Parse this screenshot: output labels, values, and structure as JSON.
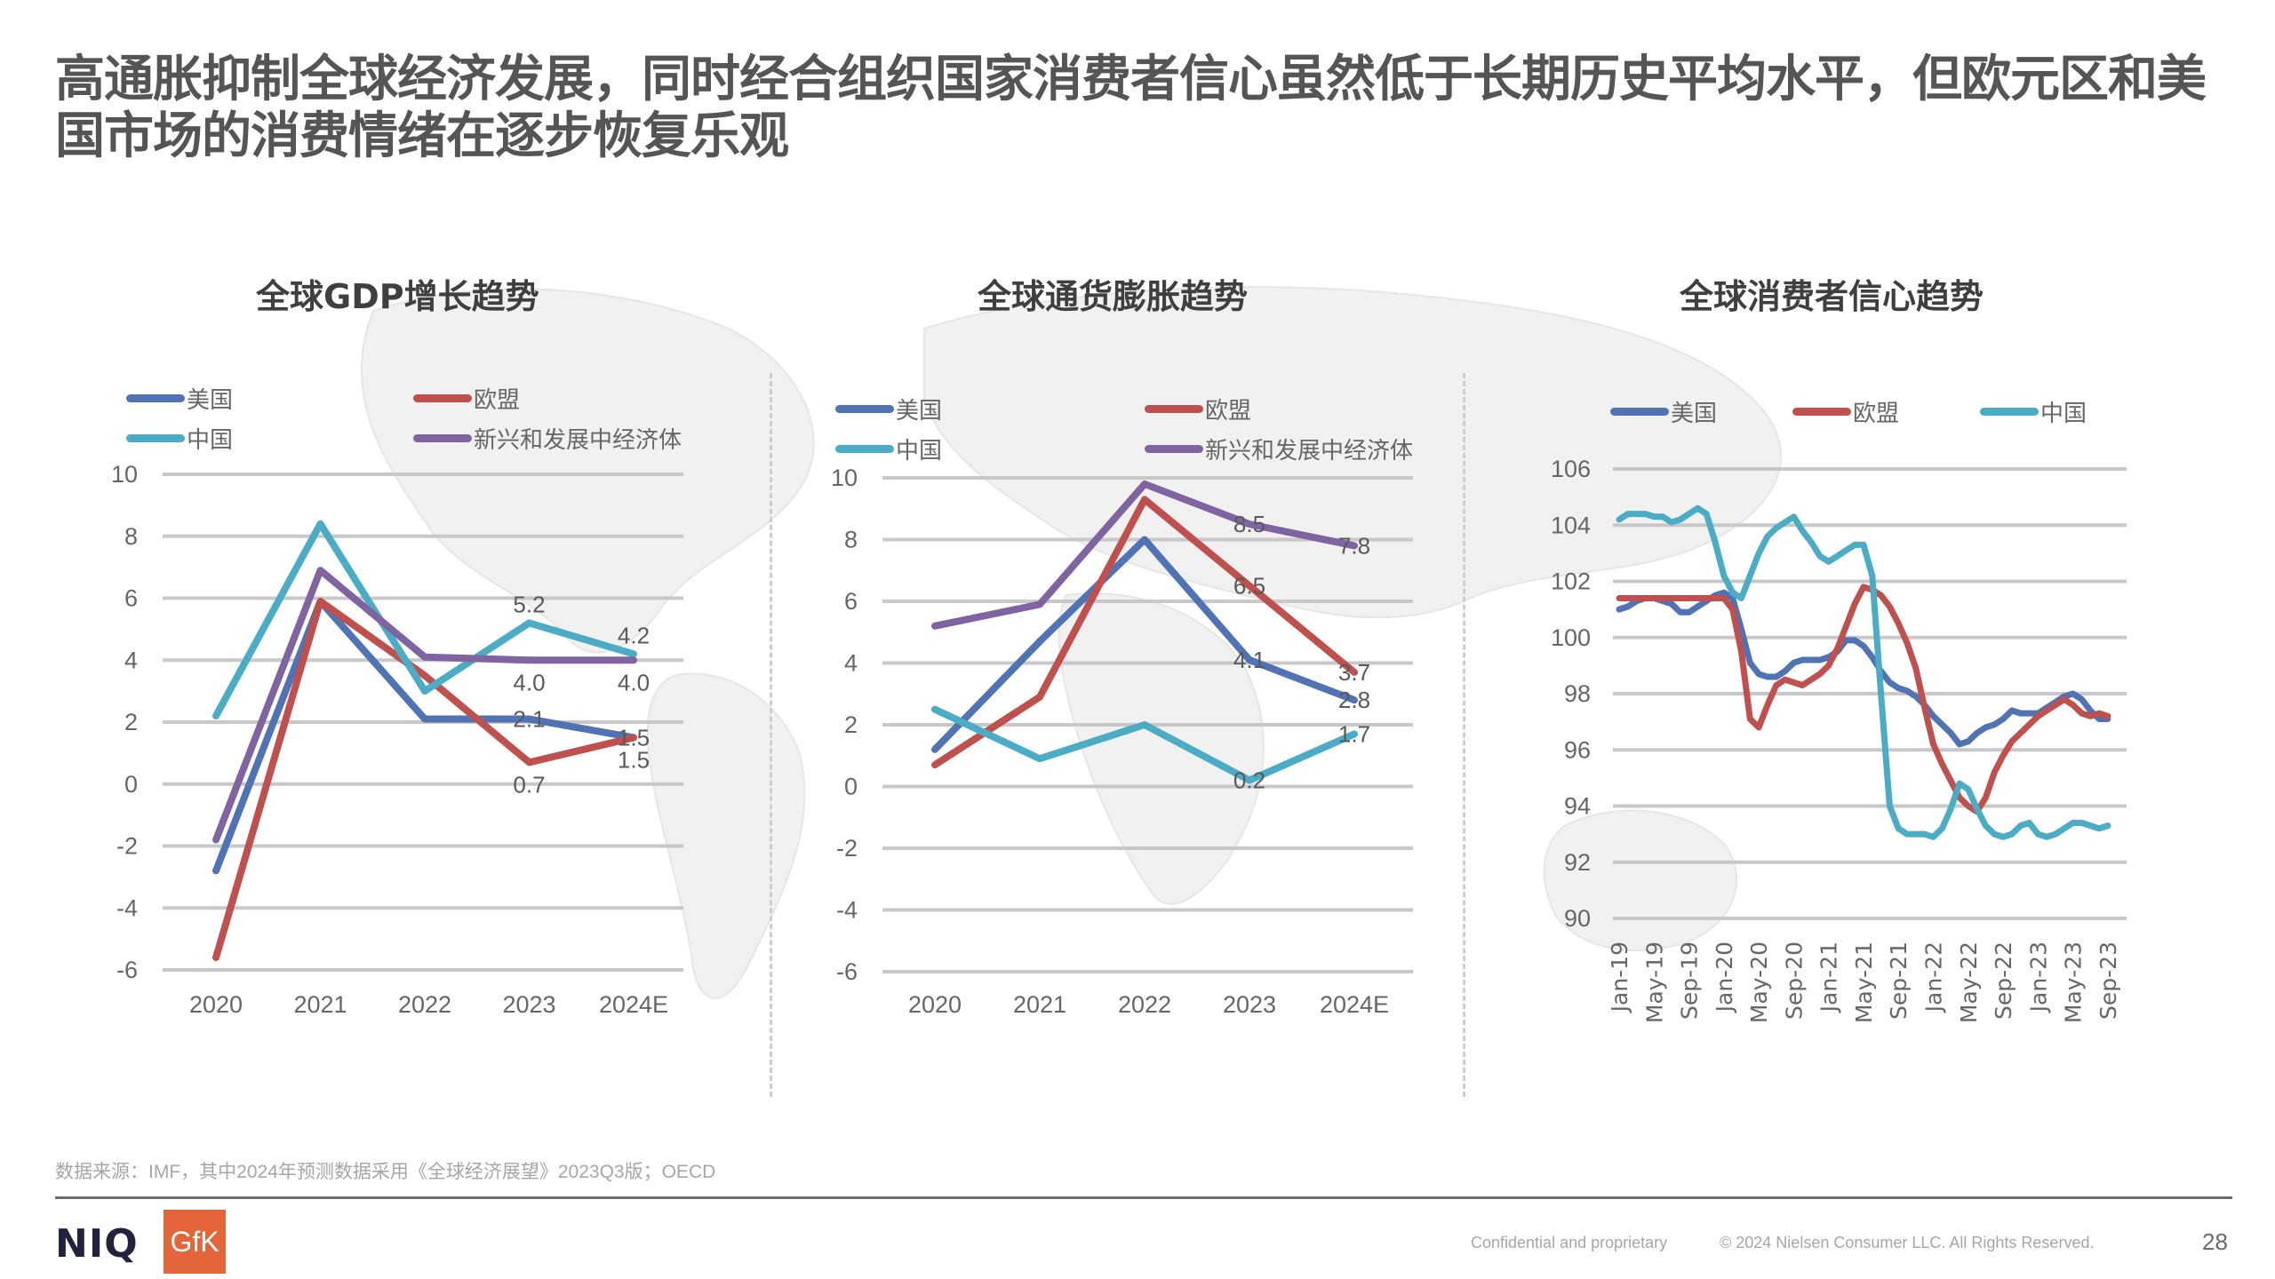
{
  "header": {
    "title": "高通胀抑制全球经济发展，同时经合组织国家消费者信心虽然低于长期历史平均水平，但欧元区和美国市场的消费情绪在逐步恢复乐观"
  },
  "colors": {
    "us": "#4F73B5",
    "eu": "#C0504D",
    "china": "#4BACC6",
    "emde": "#8064A2",
    "grid": "#c8c8c8"
  },
  "chart_data": [
    {
      "type": "line",
      "title": "全球GDP增长趋势",
      "xlabel": "",
      "ylabel": "",
      "categories": [
        "2020",
        "2021",
        "2022",
        "2023",
        "2024E"
      ],
      "yticks": [
        "10",
        "8",
        "6",
        "4",
        "2",
        "0",
        "-2",
        "-4",
        "-6"
      ],
      "ylim": [
        -6,
        10
      ],
      "grid": true,
      "legend_position": "top",
      "series": [
        {
          "name": "美国",
          "key": "us",
          "values": [
            -2.8,
            5.9,
            2.1,
            2.1,
            1.5
          ]
        },
        {
          "name": "欧盟",
          "key": "eu",
          "values": [
            -5.6,
            5.9,
            3.5,
            0.7,
            1.5
          ]
        },
        {
          "name": "中国",
          "key": "china",
          "values": [
            2.2,
            8.4,
            3.0,
            5.2,
            4.2
          ]
        },
        {
          "name": "新兴和发展中经济体",
          "key": "emde",
          "values": [
            -1.8,
            6.9,
            4.1,
            4.0,
            4.0
          ]
        }
      ],
      "data_labels": [
        {
          "series": "china",
          "index": 3,
          "text": "5.2",
          "pos": "above"
        },
        {
          "series": "china",
          "index": 4,
          "text": "4.2",
          "pos": "above"
        },
        {
          "series": "emde",
          "index": 3,
          "text": "4.0",
          "pos": "below"
        },
        {
          "series": "emde",
          "index": 4,
          "text": "4.0",
          "pos": "below"
        },
        {
          "series": "us",
          "index": 3,
          "text": "2.1",
          "pos": "on"
        },
        {
          "series": "us",
          "index": 4,
          "text": "1.5",
          "pos": "on"
        },
        {
          "series": "eu",
          "index": 3,
          "text": "0.7",
          "pos": "below"
        },
        {
          "series": "eu",
          "index": 4,
          "text": "1.5",
          "pos": "below"
        }
      ]
    },
    {
      "type": "line",
      "title": "全球通货膨胀趋势",
      "xlabel": "",
      "ylabel": "",
      "categories": [
        "2020",
        "2021",
        "2022",
        "2023",
        "2024E"
      ],
      "yticks": [
        "10",
        "8",
        "6",
        "4",
        "2",
        "0",
        "-2",
        "-4",
        "-6"
      ],
      "ylim": [
        -6,
        10
      ],
      "grid": true,
      "legend_position": "top",
      "series": [
        {
          "name": "美国",
          "key": "us",
          "values": [
            1.2,
            4.7,
            8.0,
            4.1,
            2.8
          ]
        },
        {
          "name": "欧盟",
          "key": "eu",
          "values": [
            0.7,
            2.9,
            9.3,
            6.5,
            3.7
          ]
        },
        {
          "name": "中国",
          "key": "china",
          "values": [
            2.5,
            0.9,
            2.0,
            0.2,
            1.7
          ]
        },
        {
          "name": "新兴和发展中经济体",
          "key": "emde",
          "values": [
            5.2,
            5.9,
            9.8,
            8.5,
            7.8
          ]
        }
      ],
      "data_labels": [
        {
          "series": "emde",
          "index": 3,
          "text": "8.5",
          "pos": "on"
        },
        {
          "series": "emde",
          "index": 4,
          "text": "7.8",
          "pos": "on"
        },
        {
          "series": "eu",
          "index": 3,
          "text": "6.5",
          "pos": "on"
        },
        {
          "series": "eu",
          "index": 4,
          "text": "3.7",
          "pos": "on"
        },
        {
          "series": "us",
          "index": 3,
          "text": "4.1",
          "pos": "on"
        },
        {
          "series": "us",
          "index": 4,
          "text": "2.8",
          "pos": "on"
        },
        {
          "series": "china",
          "index": 3,
          "text": "0.2",
          "pos": "on"
        },
        {
          "series": "china",
          "index": 4,
          "text": "1.7",
          "pos": "on"
        }
      ]
    },
    {
      "type": "line",
      "title": "全球消费者信心趋势",
      "xlabel": "",
      "ylabel": "",
      "x_start": "Jan-19",
      "x_step": "1 month",
      "xtick_labels": [
        "Jan-19",
        "May-19",
        "Sep-19",
        "Jan-20",
        "May-20",
        "Sep-20",
        "Jan-21",
        "May-21",
        "Sep-21",
        "Jan-22",
        "May-22",
        "Sep-22",
        "Jan-23",
        "May-23",
        "Sep-23"
      ],
      "xtick_every": 4,
      "yticks": [
        "106",
        "104",
        "102",
        "100",
        "98",
        "96",
        "94",
        "92",
        "90"
      ],
      "ylim": [
        90,
        106
      ],
      "grid": true,
      "legend_position": "top",
      "series": [
        {
          "name": "美国",
          "key": "us",
          "values": [
            101.0,
            101.1,
            101.3,
            101.4,
            101.4,
            101.3,
            101.2,
            100.9,
            100.9,
            101.1,
            101.3,
            101.5,
            101.6,
            101.4,
            100.3,
            99.1,
            98.7,
            98.6,
            98.6,
            98.8,
            99.1,
            99.2,
            99.2,
            99.2,
            99.3,
            99.5,
            99.9,
            99.9,
            99.7,
            99.3,
            98.8,
            98.4,
            98.2,
            98.1,
            97.9,
            97.6,
            97.2,
            96.9,
            96.6,
            96.2,
            96.3,
            96.6,
            96.8,
            96.9,
            97.1,
            97.4,
            97.3,
            97.3,
            97.3,
            97.5,
            97.7,
            97.9,
            98.0,
            97.8,
            97.4,
            97.1,
            97.1
          ]
        },
        {
          "name": "欧盟",
          "key": "eu",
          "values": [
            101.4,
            101.4,
            101.4,
            101.4,
            101.4,
            101.4,
            101.4,
            101.4,
            101.4,
            101.4,
            101.4,
            101.4,
            101.4,
            101.0,
            99.5,
            97.1,
            96.8,
            97.6,
            98.3,
            98.5,
            98.4,
            98.3,
            98.5,
            98.7,
            99.0,
            99.6,
            100.4,
            101.2,
            101.8,
            101.7,
            101.5,
            101.1,
            100.5,
            99.8,
            98.9,
            97.5,
            96.2,
            95.5,
            94.9,
            94.3,
            94.0,
            93.8,
            94.3,
            95.2,
            95.8,
            96.3,
            96.6,
            96.9,
            97.2,
            97.4,
            97.6,
            97.8,
            97.6,
            97.3,
            97.2,
            97.3,
            97.2
          ]
        },
        {
          "name": "中国",
          "key": "china",
          "values": [
            104.2,
            104.4,
            104.4,
            104.4,
            104.3,
            104.3,
            104.1,
            104.2,
            104.4,
            104.6,
            104.4,
            103.4,
            102.2,
            101.6,
            101.4,
            102.2,
            103.0,
            103.6,
            103.9,
            104.1,
            104.3,
            103.8,
            103.4,
            102.9,
            102.7,
            102.9,
            103.1,
            103.3,
            103.3,
            102.2,
            98.0,
            94.0,
            93.2,
            93.0,
            93.0,
            93.0,
            92.9,
            93.2,
            93.9,
            94.8,
            94.6,
            93.9,
            93.3,
            93.0,
            92.9,
            93.0,
            93.3,
            93.4,
            93.0,
            92.9,
            93.0,
            93.2,
            93.4,
            93.4,
            93.3,
            93.2,
            93.3
          ]
        }
      ]
    }
  ],
  "footer": {
    "source": "数据来源：IMF，其中2024年预测数据采用《全球经济展望》2023Q3版；OECD",
    "brand_niq": "NIQ",
    "brand_gfk": "GfK",
    "confidential": "Confidential and proprietary",
    "copyright": "© 2024 Nielsen Consumer LLC. All Rights Reserved.",
    "page_number": "28"
  }
}
